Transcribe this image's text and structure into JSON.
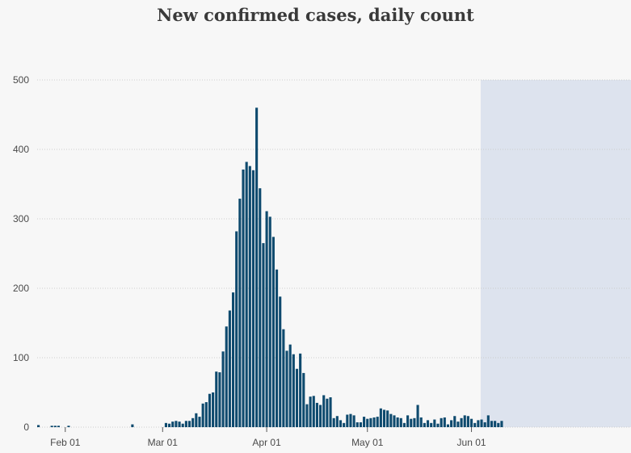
{
  "chart_data": {
    "type": "bar",
    "title": "New confirmed cases, daily count",
    "xlabel": "",
    "ylabel": "",
    "ylim": [
      0,
      500
    ],
    "yticks": [
      0,
      100,
      200,
      300,
      400,
      500
    ],
    "grid": "horizontal dotted",
    "legend": "none",
    "colors": {
      "bar": "#0e4a6e",
      "projection": "#dde3ee",
      "grid": "#cccccc",
      "background": "#f7f7f7"
    },
    "start_date": "2020-01-24",
    "xticks": [
      {
        "date": "2020-02-01",
        "label": "Feb 01"
      },
      {
        "date": "2020-03-01",
        "label": "Mar 01"
      },
      {
        "date": "2020-04-01",
        "label": "Apr 01"
      },
      {
        "date": "2020-05-01",
        "label": "May 01"
      },
      {
        "date": "2020-06-01",
        "label": "Jun 01"
      }
    ],
    "shaded_region": {
      "from": "2020-06-04",
      "to": "2020-06-05"
    },
    "values": [
      3,
      0,
      0,
      0,
      2,
      2,
      2,
      0,
      0,
      2,
      0,
      0,
      0,
      0,
      0,
      0,
      0,
      0,
      0,
      0,
      0,
      0,
      0,
      0,
      0,
      0,
      0,
      0,
      4,
      0,
      0,
      0,
      0,
      0,
      0,
      0,
      0,
      0,
      6,
      5,
      8,
      9,
      8,
      5,
      9,
      9,
      13,
      20,
      15,
      34,
      36,
      48,
      50,
      80,
      79,
      109,
      145,
      168,
      194,
      282,
      329,
      371,
      382,
      376,
      370,
      460,
      344,
      265,
      311,
      303,
      274,
      227,
      188,
      141,
      110,
      119,
      105,
      84,
      106,
      78,
      33,
      44,
      45,
      35,
      32,
      46,
      41,
      43,
      13,
      16,
      10,
      6,
      18,
      19,
      17,
      7,
      7,
      15,
      12,
      13,
      14,
      15,
      27,
      25,
      24,
      19,
      17,
      14,
      13,
      6,
      17,
      12,
      13,
      32,
      14,
      6,
      10,
      6,
      11,
      5,
      13,
      14,
      4,
      10,
      16,
      8,
      13,
      17,
      16,
      12,
      6,
      10,
      11,
      7,
      17,
      9,
      9,
      6,
      9
    ]
  }
}
